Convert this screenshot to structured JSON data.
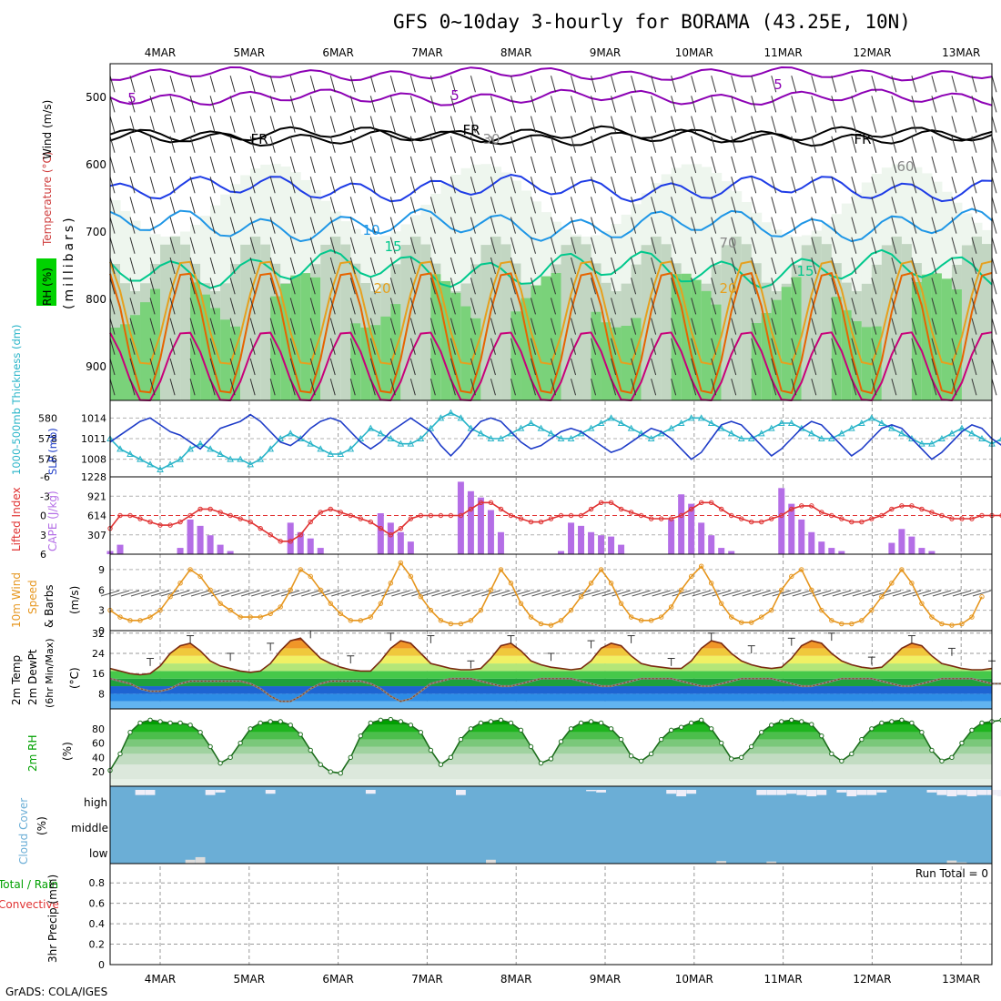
{
  "title": "GFS 0~10day 3-hourly for BORAMA (43.25E, 10N)",
  "credit": "GrADS: COLA/IGES",
  "date_labels": [
    "4MAR",
    "5MAR",
    "6MAR",
    "7MAR",
    "8MAR",
    "9MAR",
    "10MAR",
    "11MAR",
    "12MAR",
    "13MAR"
  ],
  "colors": {
    "rh_dark": "#00d200",
    "rh_mid": "#7ad27a",
    "rh_light": "#c2d6c2",
    "rh_pale": "#eef6ee",
    "temp_violet": "#8c00b4",
    "temp_black": "#000000",
    "temp_blue": "#1e3ce6",
    "temp_cyan": "#1e96e6",
    "temp_green": "#00c88c",
    "temp_orange": "#e6a01e",
    "temp_dkorange": "#e66400",
    "temp_magenta": "#c8007a",
    "slp": "#1e3cc8",
    "thickness": "#28b4c8",
    "lifted": "#e03232",
    "cape": "#b46ee6",
    "wind": "#e6961e",
    "cloud": "#6baed6",
    "cloud_clear": "#f0eef8"
  },
  "panels": {
    "upper": {
      "ylabel_rh": "RH (%)",
      "ylabel_temp": "Temperature (°C)",
      "ylabel_wind": "Wind (m/s)",
      "ylabel_p": "(millibars)",
      "yticks": [
        500,
        600,
        700,
        800,
        900
      ],
      "ylim": [
        950,
        450
      ],
      "contour_labels": [
        "5",
        "5",
        "5",
        "FR",
        "FR",
        "FR",
        "10",
        "15",
        "15",
        "20",
        "20",
        "30",
        "60",
        "70"
      ]
    },
    "slp": {
      "ylabel_thick": "1000-500mb Thickness (dm)",
      "ylabel_slp": "SLP (mb)",
      "yticks_left": [
        576,
        578,
        580
      ],
      "yticks_right": [
        1008,
        1011,
        1014
      ]
    },
    "cape": {
      "ylabel_li": "Lifted Index",
      "ylabel_cape": "CAPE (J/kg)",
      "yticks_left": [
        -6,
        -3,
        0,
        3,
        6
      ],
      "yticks_right": [
        307,
        614,
        921,
        1228
      ]
    },
    "wind": {
      "ylabel_1": "10m Wind",
      "ylabel_2": "Speed",
      "ylabel_3": "& Barbs",
      "unit": "(m/s)",
      "yticks": [
        0,
        3,
        6,
        9
      ]
    },
    "temp": {
      "ylabel_1": "2m Temp",
      "ylabel_2": "2m DewPt",
      "ylabel_3": "(6hr Min/Max)",
      "unit": "(°C)",
      "yticks": [
        8,
        16,
        24,
        32
      ]
    },
    "rh": {
      "ylabel": "2m RH",
      "unit": "(%)",
      "yticks": [
        20,
        40,
        60,
        80
      ]
    },
    "cloud": {
      "ylabel": "Cloud Cover",
      "unit": "(%)",
      "levels": [
        "high",
        "middle",
        "low"
      ]
    },
    "precip": {
      "ylabel_a": "Total / Rain",
      "ylabel_b": "Convective",
      "ylabel_c": "3hr Precip (mm)",
      "yticks": [
        0,
        0.2,
        0.4,
        0.6,
        0.8
      ],
      "run_total": "Run Total = 0"
    }
  },
  "chart_data": {
    "type": "line",
    "x_dates": [
      "4MAR",
      "5MAR",
      "6MAR",
      "7MAR",
      "8MAR",
      "9MAR",
      "10MAR",
      "11MAR",
      "12MAR",
      "13MAR"
    ],
    "steps_per_day": 8,
    "slp_mb": [
      1010.5,
      1011.5,
      1012.5,
      1013.5,
      1014,
      1013,
      1012,
      1011.5,
      1010.5,
      1009.5,
      1011,
      1012.5,
      1013,
      1013.5,
      1014.5,
      1013.5,
      1012,
      1010.5,
      1010,
      1011,
      1012.5,
      1013.5,
      1014,
      1013.5,
      1012,
      1010.5,
      1009.5,
      1010.5,
      1012,
      1013,
      1014,
      1013,
      1012,
      1010,
      1008.5,
      1010,
      1012,
      1013.5,
      1014,
      1013.5,
      1012,
      1010.5,
      1009.5,
      1010,
      1011,
      1012,
      1012.5,
      1012,
      1011,
      1010,
      1009,
      1009.5,
      1010.5,
      1011.5,
      1012.5,
      1012,
      1011,
      1009.5,
      1008,
      1009,
      1011,
      1013,
      1013.5,
      1013,
      1011.5,
      1010,
      1008.5,
      1009.5,
      1011,
      1012.5,
      1013.5,
      1013,
      1011.5,
      1010,
      1008.5,
      1009.5,
      1011,
      1012.5,
      1013,
      1012.5,
      1011,
      1009.5,
      1008,
      1009,
      1010.5,
      1012,
      1013,
      1012.5,
      1011,
      1010
    ],
    "thickness_dm": [
      578,
      577,
      576.5,
      576,
      575.5,
      575,
      575.5,
      576,
      577,
      577.5,
      577,
      576.5,
      576,
      576,
      575.5,
      576,
      577,
      578,
      578.5,
      578,
      577.5,
      577,
      576.5,
      576.5,
      577,
      578,
      579,
      578.5,
      578,
      577.5,
      577.5,
      578,
      579,
      580,
      580.5,
      580,
      579,
      578.5,
      578,
      578,
      578.5,
      579,
      579.5,
      579,
      578.5,
      578,
      578,
      578.5,
      579,
      579.5,
      580,
      579.5,
      579,
      578.5,
      578,
      578.5,
      579,
      579.5,
      580,
      580,
      579.5,
      579,
      578.5,
      578,
      578,
      578.5,
      579,
      579.5,
      579.5,
      579,
      578.5,
      578,
      578,
      578.5,
      579,
      579.5,
      580,
      579.5,
      579,
      578.5,
      578,
      577.5,
      577.5,
      578,
      578.5,
      579,
      578.5,
      578,
      577.5,
      578
    ],
    "lifted_index": [
      2,
      0,
      0,
      0.5,
      1,
      1.5,
      1.5,
      1,
      0,
      -1,
      -1,
      -0.5,
      0,
      0.5,
      1,
      2,
      3,
      4,
      4,
      3,
      1,
      -0.5,
      -1,
      -0.5,
      0,
      0.5,
      1,
      2,
      3,
      2,
      0.5,
      0,
      0,
      0,
      0,
      0,
      -1,
      -2,
      -2,
      -1,
      0,
      0.5,
      1,
      1,
      0.5,
      0,
      0,
      0,
      -1,
      -2,
      -2,
      -1,
      -0.5,
      0,
      0.5,
      0.5,
      0.5,
      0,
      -1,
      -2,
      -2,
      -1,
      0,
      0.5,
      1,
      1,
      0.5,
      0,
      -1,
      -1.5,
      -1.5,
      -0.5,
      0,
      0.5,
      1,
      1,
      0.5,
      0,
      -1,
      -1.5,
      -1.5,
      -1,
      -0.5,
      0,
      0.5,
      0.5,
      0.5,
      0,
      0,
      0
    ],
    "cape_jkg": [
      50,
      150,
      0,
      0,
      0,
      0,
      0,
      100,
      550,
      450,
      300,
      150,
      50,
      0,
      0,
      0,
      0,
      0,
      500,
      350,
      250,
      100,
      0,
      0,
      0,
      0,
      0,
      650,
      500,
      350,
      200,
      0,
      0,
      0,
      0,
      1150,
      1000,
      900,
      700,
      350,
      0,
      0,
      0,
      0,
      0,
      50,
      500,
      450,
      350,
      300,
      280,
      150,
      0,
      0,
      0,
      0,
      550,
      950,
      800,
      500,
      300,
      100,
      50,
      0,
      0,
      0,
      0,
      1050,
      800,
      550,
      350,
      200,
      100,
      50,
      0,
      0,
      0,
      0,
      180,
      400,
      280,
      100,
      50,
      0,
      0,
      0,
      0,
      0,
      0,
      0
    ],
    "wind_ms": [
      3,
      2,
      1.5,
      1.5,
      2,
      3,
      5,
      7,
      9,
      8,
      6,
      4,
      3,
      2,
      2,
      2,
      2.5,
      3.5,
      6,
      9,
      8,
      6,
      4,
      2.5,
      1.5,
      1.5,
      2,
      4,
      7,
      10,
      8,
      5,
      3,
      1.5,
      1,
      1,
      1.5,
      3,
      6,
      9,
      7,
      4,
      2,
      1,
      0.8,
      1.5,
      3,
      5,
      7,
      9,
      7,
      4,
      2,
      1.5,
      1.5,
      2,
      3.5,
      6,
      8,
      9.5,
      7,
      4,
      2,
      1.2,
      1.2,
      2,
      3,
      6,
      8,
      9,
      6,
      3,
      1.5,
      1,
      1,
      1.5,
      3,
      5,
      7,
      9,
      7,
      4,
      2,
      1,
      0.8,
      1,
      2,
      5
    ],
    "temp_c": [
      18,
      17,
      16,
      15.5,
      16,
      19,
      24,
      27,
      28,
      25,
      21,
      19,
      18,
      17,
      16.5,
      17,
      20,
      25,
      29,
      30,
      26,
      22,
      20,
      18.5,
      17.5,
      17,
      17,
      21,
      26,
      29,
      28,
      24,
      20,
      19,
      18,
      17.5,
      17.5,
      18,
      22,
      27,
      28,
      25,
      21,
      19.5,
      18.5,
      18,
      17.5,
      18,
      21,
      26,
      28,
      27,
      23,
      20,
      19,
      18.5,
      18,
      18,
      21,
      26,
      29,
      28,
      24,
      21,
      19.5,
      18.5,
      18,
      18.5,
      22,
      27,
      29,
      28,
      24,
      21,
      19.5,
      18.5,
      18,
      18.5,
      22,
      26,
      28,
      27,
      23,
      20,
      19,
      18,
      17.5,
      17.5,
      18
    ],
    "dewpoint_c": [
      14,
      13,
      12,
      10,
      9,
      9,
      10,
      12,
      13,
      13,
      13,
      13,
      13,
      13,
      12,
      10,
      7,
      5,
      5,
      7,
      10,
      12,
      13,
      13,
      13,
      13,
      12,
      10,
      7,
      5,
      6,
      9,
      12,
      13,
      14,
      14,
      14,
      13,
      12,
      11,
      11,
      12,
      13,
      14,
      14,
      14,
      14,
      13,
      12,
      11,
      11,
      12,
      13,
      14,
      14,
      14,
      14,
      13,
      12,
      11,
      11,
      12,
      13,
      14,
      14,
      14,
      14,
      13,
      12,
      11,
      11,
      12,
      13,
      14,
      14,
      14,
      14,
      13,
      12,
      11,
      11,
      12,
      13,
      14,
      14,
      14,
      14,
      13,
      12,
      12
    ],
    "rh_pct": [
      22,
      45,
      75,
      88,
      92,
      90,
      88,
      88,
      85,
      75,
      55,
      32,
      40,
      60,
      80,
      88,
      90,
      90,
      85,
      72,
      50,
      30,
      20,
      18,
      40,
      70,
      88,
      92,
      93,
      90,
      85,
      75,
      50,
      30,
      40,
      65,
      80,
      88,
      90,
      92,
      88,
      78,
      55,
      32,
      38,
      62,
      80,
      88,
      90,
      88,
      80,
      65,
      42,
      35,
      45,
      65,
      78,
      82,
      88,
      92,
      80,
      60,
      38,
      40,
      55,
      75,
      85,
      90,
      92,
      90,
      86,
      70,
      45,
      35,
      45,
      65,
      80,
      88,
      90,
      92,
      88,
      75,
      50,
      35,
      40,
      60,
      78,
      88,
      90,
      92
    ],
    "cloud_high": [
      100,
      100,
      100,
      80,
      80,
      100,
      100,
      100,
      100,
      100,
      80,
      90,
      100,
      100,
      100,
      100,
      85,
      100,
      100,
      100,
      100,
      100,
      100,
      100,
      100,
      100,
      85,
      100,
      100,
      100,
      100,
      100,
      100,
      100,
      100,
      80,
      100,
      100,
      100,
      100,
      100,
      100,
      100,
      100,
      100,
      100,
      100,
      100,
      95,
      90,
      100,
      100,
      100,
      100,
      100,
      100,
      85,
      75,
      85,
      100,
      100,
      100,
      100,
      100,
      100,
      80,
      80,
      80,
      85,
      80,
      75,
      80,
      100,
      90,
      75,
      80,
      80,
      90,
      100,
      100,
      100,
      100,
      90,
      80,
      75,
      80,
      75,
      80,
      80,
      75
    ],
    "cloud_low": [
      0,
      0,
      0,
      0,
      0,
      0,
      0,
      0,
      15,
      25,
      0,
      0,
      0,
      0,
      0,
      0,
      0,
      0,
      0,
      0,
      0,
      0,
      0,
      0,
      0,
      0,
      0,
      0,
      0,
      0,
      0,
      0,
      0,
      0,
      0,
      0,
      0,
      0,
      15,
      0,
      0,
      0,
      0,
      0,
      0,
      0,
      0,
      0,
      0,
      0,
      0,
      0,
      0,
      0,
      0,
      0,
      0,
      0,
      0,
      0,
      0,
      10,
      0,
      0,
      0,
      0,
      8,
      0,
      0,
      0,
      0,
      0,
      0,
      0,
      0,
      0,
      0,
      0,
      0,
      0,
      0,
      0,
      0,
      0,
      12,
      5,
      0,
      0,
      0,
      0
    ]
  }
}
